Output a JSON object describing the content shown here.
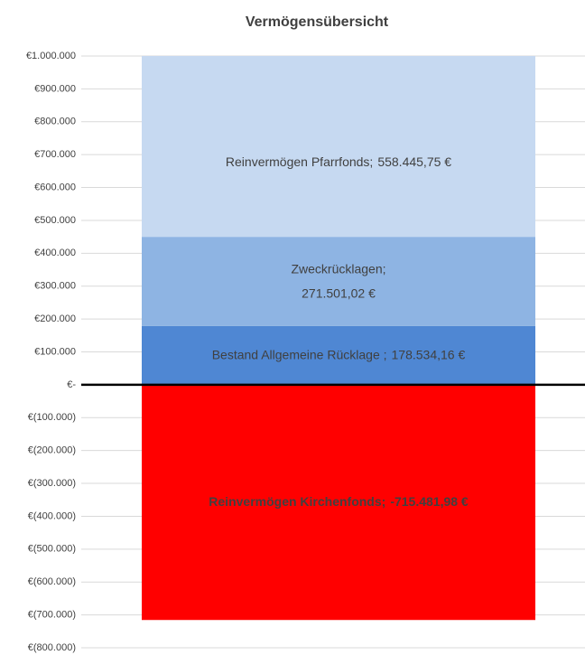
{
  "chart_data": {
    "type": "stacked_bar",
    "title": "Vermögensübersicht",
    "categories": [
      null
    ],
    "series": [
      {
        "name": "Bestand Allgemeine Rücklage ;",
        "color": "#4f87d3",
        "values": [
          178534.16
        ],
        "value_labels": [
          "178.534,16 €"
        ]
      },
      {
        "name": "Zweckrücklagen;",
        "color": "#8eb4e3",
        "values": [
          271501.02
        ],
        "value_labels": [
          "271.501,02 €"
        ]
      },
      {
        "name": "Reinvermögen Pfarrfonds;",
        "color": "#c6d9f1",
        "values": [
          558445.75
        ],
        "value_labels": [
          "558.445,75 €"
        ]
      },
      {
        "name": "Reinvermögen Kirchenfonds;",
        "color": "#ff0000",
        "values": [
          -715481.98
        ],
        "value_labels": [
          "-715.481,98 €"
        ]
      }
    ],
    "ylim": [
      -800000,
      1000000
    ],
    "yticks": [
      {
        "value": 1000000,
        "label": "€1.000.000"
      },
      {
        "value": 900000,
        "label": "€900.000"
      },
      {
        "value": 800000,
        "label": "€800.000"
      },
      {
        "value": 700000,
        "label": "€700.000"
      },
      {
        "value": 600000,
        "label": "€600.000"
      },
      {
        "value": 500000,
        "label": "€500.000"
      },
      {
        "value": 400000,
        "label": "€400.000"
      },
      {
        "value": 300000,
        "label": "€300.000"
      },
      {
        "value": 200000,
        "label": "€200.000"
      },
      {
        "value": 100000,
        "label": "€100.000"
      },
      {
        "value": 0,
        "label": "€-"
      },
      {
        "value": -100000,
        "label": "€(100.000)"
      },
      {
        "value": -200000,
        "label": "€(200.000)"
      },
      {
        "value": -300000,
        "label": "€(300.000)"
      },
      {
        "value": -400000,
        "label": "€(400.000)"
      },
      {
        "value": -500000,
        "label": "€(500.000)"
      },
      {
        "value": -600000,
        "label": "€(600.000)"
      },
      {
        "value": -700000,
        "label": "€(700.000)"
      },
      {
        "value": -800000,
        "label": "€(800.000)"
      }
    ],
    "grid": true
  }
}
